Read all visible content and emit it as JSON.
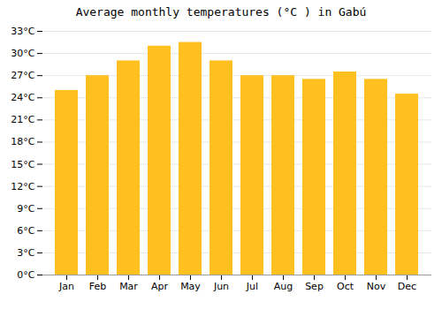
{
  "chart_data": {
    "type": "bar",
    "title": "Average monthly temperatures (°C ) in Gabú",
    "categories": [
      "Jan",
      "Feb",
      "Mar",
      "Apr",
      "May",
      "Jun",
      "Jul",
      "Aug",
      "Sep",
      "Oct",
      "Nov",
      "Dec"
    ],
    "values": [
      25.0,
      27.0,
      29.0,
      31.0,
      31.5,
      29.0,
      27.0,
      27.0,
      26.5,
      27.5,
      26.5,
      24.5
    ],
    "color": "#FFC020",
    "ylim": [
      0,
      33
    ],
    "yticks": [
      {
        "value": 0,
        "label": "0°C"
      },
      {
        "value": 3,
        "label": "3°C"
      },
      {
        "value": 6,
        "label": "6°C"
      },
      {
        "value": 9,
        "label": "9°C"
      },
      {
        "value": 12,
        "label": "12°C"
      },
      {
        "value": 15,
        "label": "15°C"
      },
      {
        "value": 18,
        "label": "18°C"
      },
      {
        "value": 21,
        "label": "21°C"
      },
      {
        "value": 24,
        "label": "24°C"
      },
      {
        "value": 27,
        "label": "27°C"
      },
      {
        "value": 30,
        "label": "30°C"
      },
      {
        "value": 33,
        "label": "33°C"
      }
    ],
    "grid": true
  }
}
